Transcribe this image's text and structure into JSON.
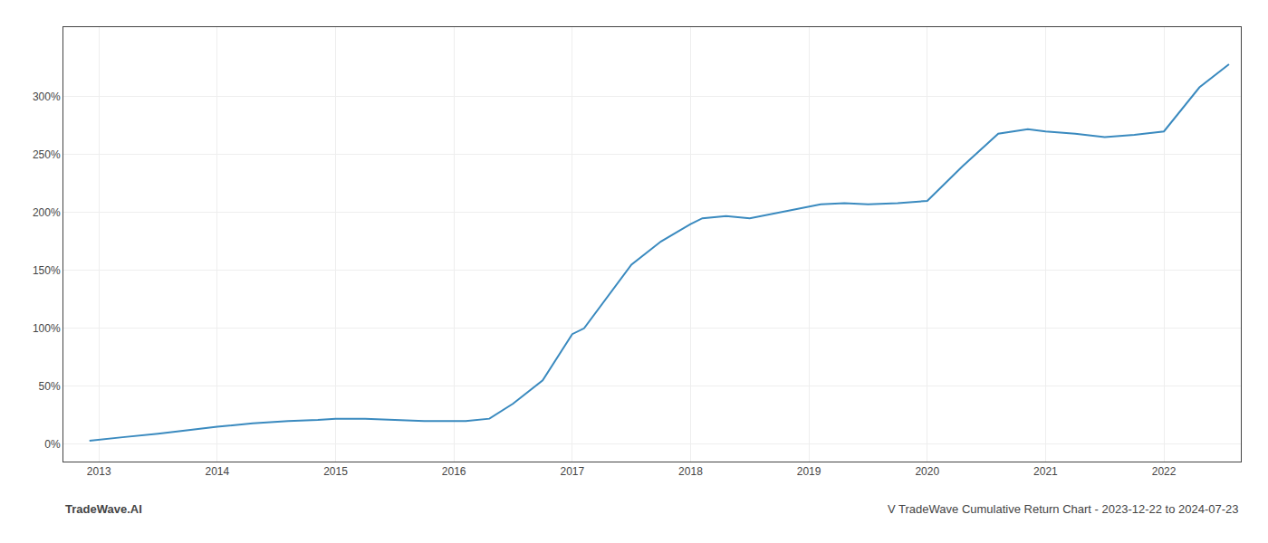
{
  "chart_data": {
    "type": "line",
    "title": "V TradeWave Cumulative Return Chart - 2023-12-22 to 2024-07-23",
    "annotations": [
      "TradeWave.AI"
    ],
    "x": [
      2012.92,
      2013.0,
      2013.2,
      2013.5,
      2013.75,
      2014.0,
      2014.3,
      2014.6,
      2014.85,
      2015.0,
      2015.25,
      2015.5,
      2015.75,
      2016.0,
      2016.1,
      2016.3,
      2016.5,
      2016.75,
      2017.0,
      2017.1,
      2017.5,
      2017.75,
      2018.0,
      2018.1,
      2018.3,
      2018.5,
      2018.75,
      2019.0,
      2019.1,
      2019.3,
      2019.5,
      2019.75,
      2020.0,
      2020.3,
      2020.6,
      2020.85,
      2021.0,
      2021.25,
      2021.5,
      2021.75,
      2022.0,
      2022.3,
      2022.55
    ],
    "values": [
      3,
      4,
      6,
      9,
      12,
      15,
      18,
      20,
      21,
      22,
      22,
      21,
      20,
      20,
      20,
      22,
      35,
      55,
      95,
      100,
      155,
      175,
      190,
      195,
      197,
      195,
      200,
      205,
      207,
      208,
      207,
      208,
      210,
      240,
      268,
      272,
      270,
      268,
      265,
      267,
      270,
      308,
      328
    ],
    "color": "#3a8abf",
    "xlim": [
      2012.7,
      2022.65
    ],
    "xticks": [
      2013,
      2014,
      2015,
      2016,
      2017,
      2018,
      2019,
      2020,
      2021,
      2022
    ],
    "ylim": [
      -15,
      360
    ],
    "yticks": [
      {
        "value": 0,
        "label": "0%"
      },
      {
        "value": 50,
        "label": "50%"
      },
      {
        "value": 100,
        "label": "100%"
      },
      {
        "value": 150,
        "label": "150%"
      },
      {
        "value": 200,
        "label": "200%"
      },
      {
        "value": 250,
        "label": "250%"
      },
      {
        "value": 300,
        "label": "300%"
      }
    ],
    "grid": true
  }
}
